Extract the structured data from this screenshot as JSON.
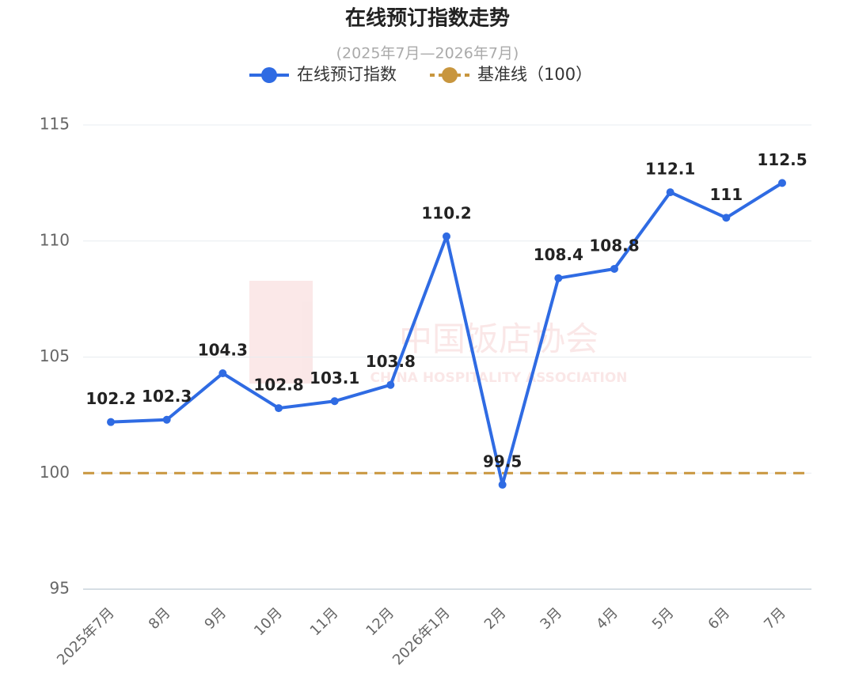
{
  "chart_data": {
    "type": "line",
    "title": "在线预订指数走势",
    "subtitle": "(2025年7月—2026年7月)",
    "watermark": [
      "中国饭店协会",
      "CHINA HOSPITALITY ASSOCIATION"
    ],
    "categories": [
      "2025年7月",
      "8月",
      "9月",
      "10月",
      "11月",
      "12月",
      "2026年1月",
      "2月",
      "3月",
      "4月",
      "5月",
      "6月",
      "7月"
    ],
    "series": [
      {
        "name": "在线预订指数",
        "color": "#2f6be3",
        "values": [
          102.2,
          102.3,
          104.3,
          102.8,
          103.1,
          103.8,
          110.2,
          99.5,
          108.4,
          108.8,
          112.1,
          111,
          112.5
        ]
      }
    ],
    "reference_line": {
      "name": "基准线（100）",
      "value": 100,
      "color": "#c8963e"
    },
    "ylim": [
      95,
      115
    ],
    "yticks": [
      95,
      100,
      105,
      110,
      115
    ],
    "grid": true
  }
}
